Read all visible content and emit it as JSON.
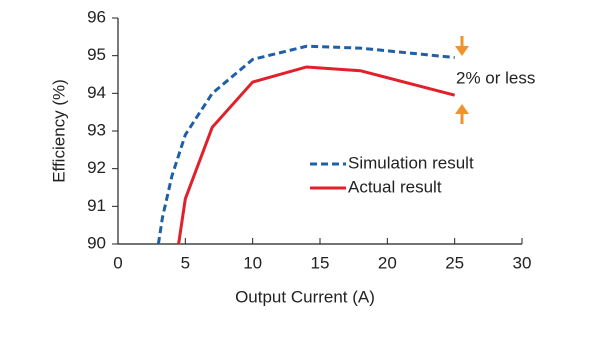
{
  "chart_data": {
    "type": "line",
    "xlabel": "Output Current (A)",
    "ylabel": "Efficiency (%)",
    "annotation": "2% or less",
    "series": [
      {
        "name": "Simulation result",
        "color": "#1f5fa8",
        "style": "dashed",
        "x": [
          3,
          3.3,
          4,
          5,
          7,
          10,
          14,
          18,
          25
        ],
        "values": [
          90,
          90.7,
          91.8,
          92.9,
          94,
          94.9,
          95.25,
          95.2,
          94.95
        ]
      },
      {
        "name": "Actual result",
        "color": "#e0202a",
        "style": "solid",
        "x": [
          4.5,
          5,
          7,
          10,
          14,
          18,
          25
        ],
        "values": [
          90,
          91.2,
          93.1,
          94.3,
          94.7,
          94.6,
          93.95
        ]
      }
    ],
    "xlim": [
      0,
      30
    ],
    "xticks": [
      0,
      5,
      10,
      15,
      20,
      25,
      30
    ],
    "ylim": [
      90,
      96
    ],
    "yticks": [
      90,
      91,
      92,
      93,
      94,
      95,
      96
    ],
    "annotation_color": "#f0922b"
  }
}
